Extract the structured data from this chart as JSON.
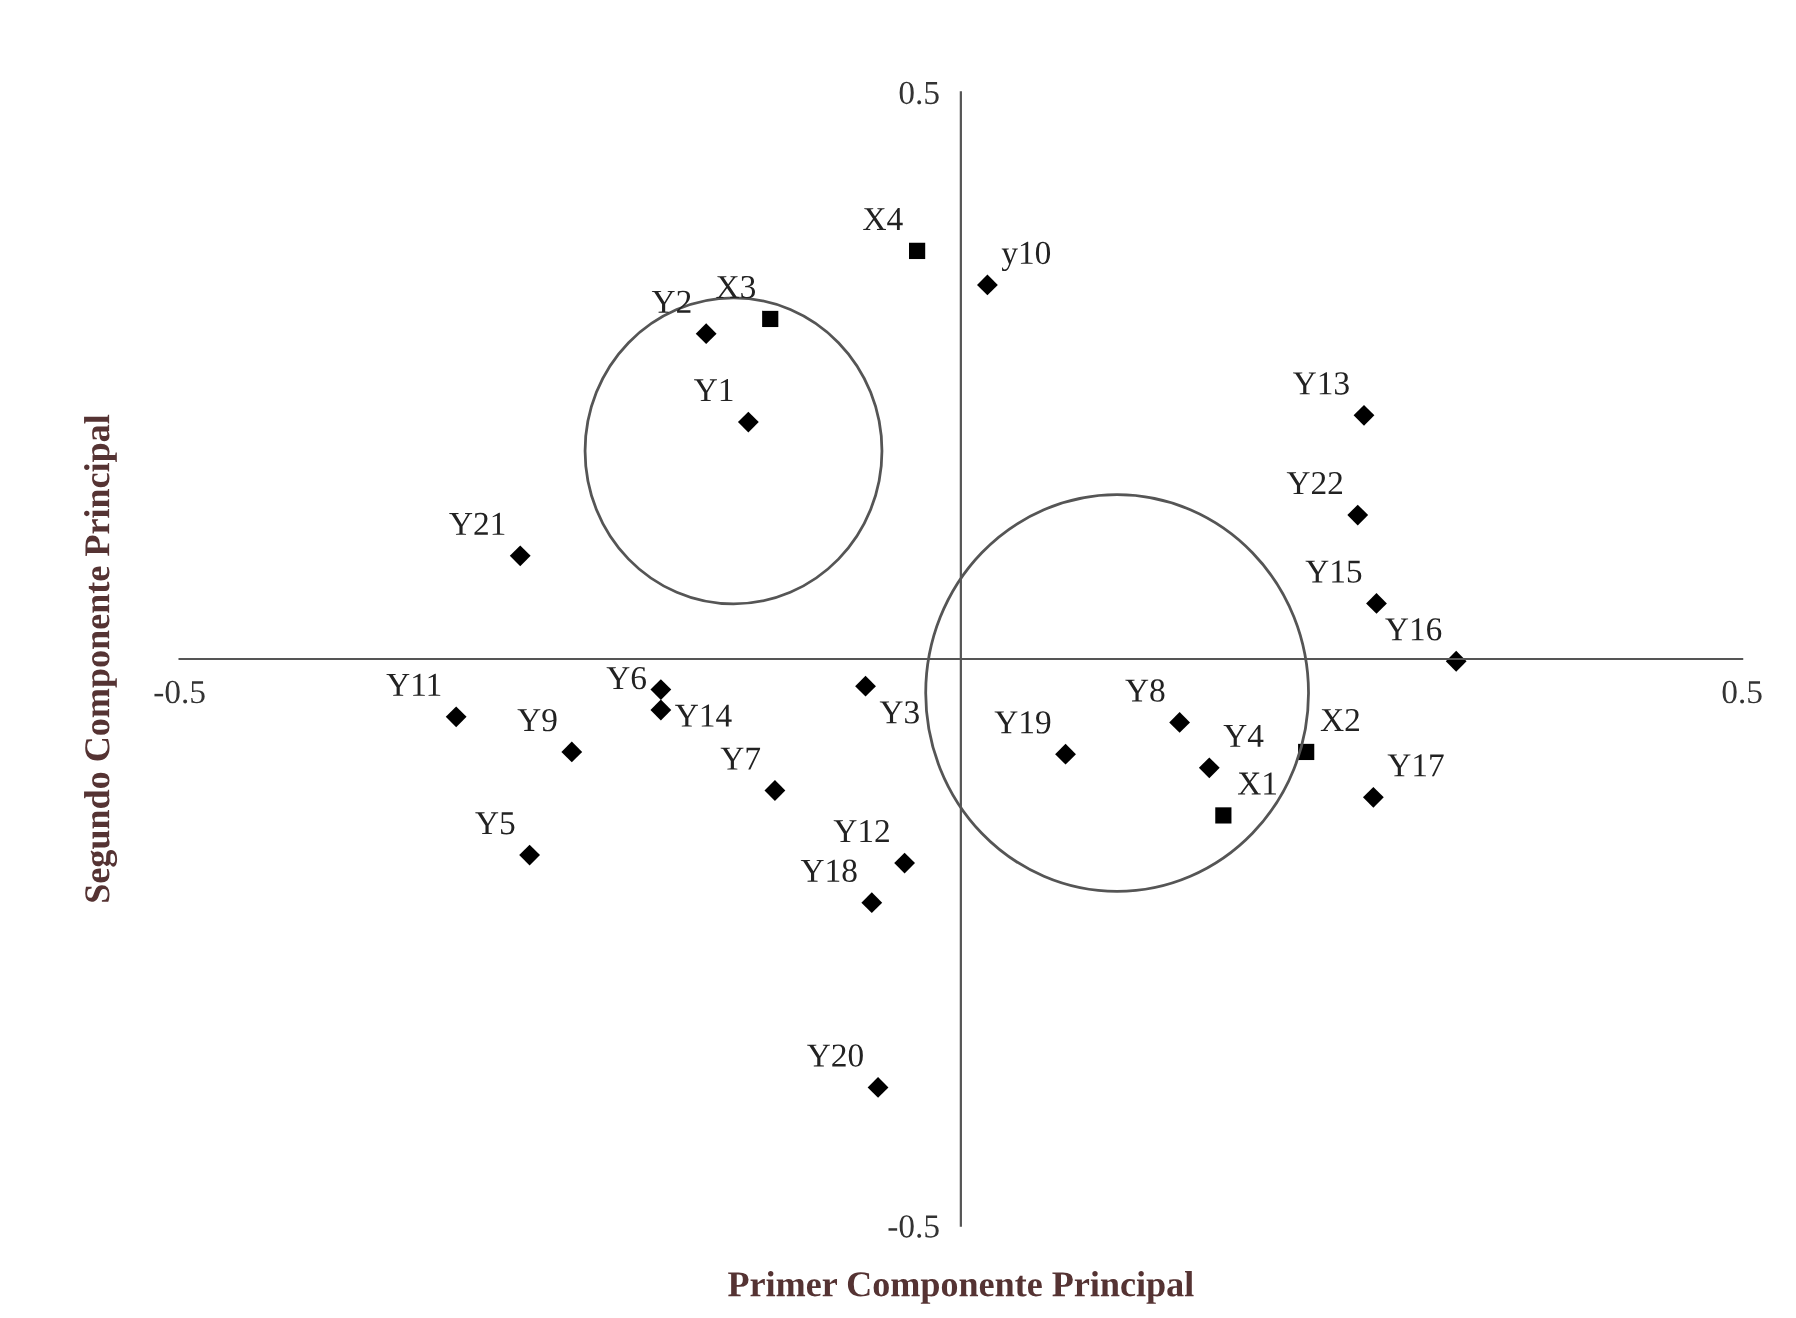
{
  "chart_data": {
    "type": "scatter",
    "xlabel": "Primer Componente Principal",
    "ylabel": "Segundo Componente Principal",
    "xlim": [
      -0.5,
      0.5
    ],
    "ylim": [
      -0.5,
      0.5
    ],
    "xticks": [
      -0.5,
      0.5
    ],
    "yticks": [
      -0.5,
      0.5
    ],
    "grid": false,
    "legend": false,
    "series": [
      {
        "color": "#000000",
        "marker": "diamond",
        "x": [
          -0.136,
          -0.163,
          -0.061,
          0.159,
          -0.276,
          -0.192,
          -0.119,
          0.14,
          -0.249,
          0.017,
          -0.323,
          -0.036,
          0.258,
          -0.192,
          0.266,
          0.317,
          0.264,
          -0.057,
          0.067,
          -0.053,
          -0.282,
          0.254
        ],
        "values": [
          0.209,
          0.287,
          -0.024,
          -0.096,
          -0.173,
          -0.045,
          -0.116,
          -0.056,
          -0.082,
          0.33,
          -0.051,
          -0.18,
          0.215,
          -0.027,
          0.049,
          -0.002,
          -0.122,
          -0.215,
          -0.084,
          -0.378,
          0.091,
          0.127
        ]
      },
      {
        "color": "#000000",
        "marker": "square",
        "x": [
          0.168,
          0.221,
          -0.122,
          -0.028
        ],
        "values": [
          -0.138,
          -0.082,
          0.3,
          0.36
        ]
      }
    ],
    "annotations": [
      {
        "text": "Y1",
        "x": -0.136,
        "y": 0.209
      },
      {
        "text": "Y2",
        "x": -0.163,
        "y": 0.287
      },
      {
        "text": "Y3",
        "x": -0.061,
        "y": -0.024
      },
      {
        "text": "Y4",
        "x": 0.159,
        "y": -0.096
      },
      {
        "text": "Y5",
        "x": -0.276,
        "y": -0.173
      },
      {
        "text": "Y6",
        "x": -0.192,
        "y": -0.045
      },
      {
        "text": "Y7",
        "x": -0.119,
        "y": -0.116
      },
      {
        "text": "Y8",
        "x": 0.14,
        "y": -0.056
      },
      {
        "text": "Y9",
        "x": -0.249,
        "y": -0.082
      },
      {
        "text": "y10",
        "x": 0.017,
        "y": 0.33
      },
      {
        "text": "Y11",
        "x": -0.323,
        "y": -0.051
      },
      {
        "text": "Y12",
        "x": -0.036,
        "y": -0.18
      },
      {
        "text": "Y13",
        "x": 0.258,
        "y": 0.215
      },
      {
        "text": "Y14",
        "x": -0.192,
        "y": -0.027
      },
      {
        "text": "Y15",
        "x": 0.266,
        "y": 0.049
      },
      {
        "text": "Y16",
        "x": 0.317,
        "y": -0.002
      },
      {
        "text": "Y17",
        "x": 0.264,
        "y": -0.122
      },
      {
        "text": "Y18",
        "x": -0.057,
        "y": -0.215
      },
      {
        "text": "Y19",
        "x": 0.067,
        "y": -0.084
      },
      {
        "text": "Y20",
        "x": -0.053,
        "y": -0.378
      },
      {
        "text": "Y21",
        "x": -0.282,
        "y": 0.091
      },
      {
        "text": "Y22",
        "x": 0.254,
        "y": 0.127
      },
      {
        "text": "X1",
        "x": 0.168,
        "y": -0.138
      },
      {
        "text": "X2",
        "x": 0.221,
        "y": -0.082
      },
      {
        "text": "X3",
        "x": -0.122,
        "y": 0.3
      },
      {
        "text": "X4",
        "x": -0.028,
        "y": 0.36
      }
    ]
  }
}
